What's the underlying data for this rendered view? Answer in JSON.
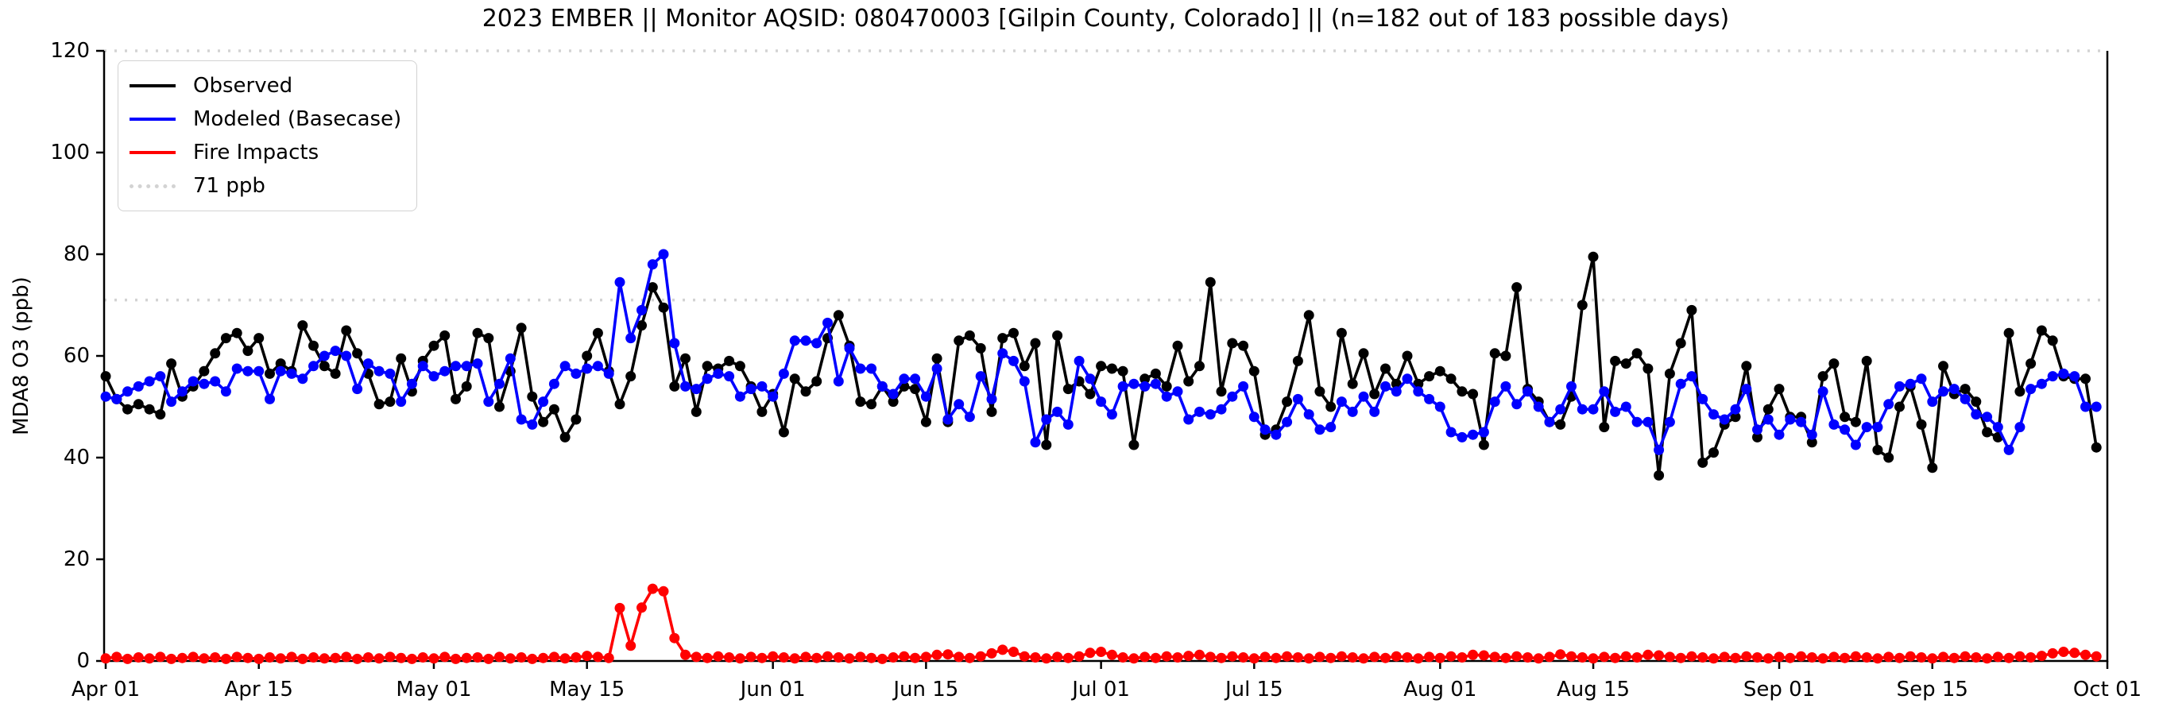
{
  "figure": {
    "title": "2023 EMBER || Monitor AQSID: 080470003 [Gilpin County, Colorado] || (n=182 out of 183 possible days)",
    "y_axis_label": "MDA8 O3 (ppb)",
    "background_color": "#ffffff"
  },
  "legend": {
    "items": [
      {
        "key": "observed",
        "label": "Observed",
        "color": "#000000",
        "style": "solid"
      },
      {
        "key": "modeled",
        "label": "Modeled (Basecase)",
        "color": "#0000ff",
        "style": "solid"
      },
      {
        "key": "fire",
        "label": "Fire Impacts",
        "color": "#ff0000",
        "style": "solid"
      },
      {
        "key": "threshold",
        "label": "71 ppb",
        "color": "#d3d3d3",
        "style": "dotted"
      }
    ],
    "position": "upper left"
  },
  "chart_data": {
    "type": "line",
    "title": "2023 EMBER || Monitor AQSID: 080470003 [Gilpin County, Colorado] || (n=182 out of 183 possible days)",
    "xlabel": "",
    "ylabel": "MDA8 O3 (ppb)",
    "ylim": [
      0,
      120
    ],
    "yticks": [
      0,
      20,
      40,
      60,
      80,
      100,
      120
    ],
    "x_axis": {
      "start_label": "Apr 01",
      "end_label": "Oct 01",
      "total_days": 183
    },
    "xticks": [
      {
        "label": "Apr 01",
        "day": 0
      },
      {
        "label": "Apr 15",
        "day": 14
      },
      {
        "label": "May 01",
        "day": 30
      },
      {
        "label": "May 15",
        "day": 44
      },
      {
        "label": "Jun 01",
        "day": 61
      },
      {
        "label": "Jun 15",
        "day": 75
      },
      {
        "label": "Jul 01",
        "day": 91
      },
      {
        "label": "Jul 15",
        "day": 105
      },
      {
        "label": "Aug 01",
        "day": 122
      },
      {
        "label": "Aug 15",
        "day": 136
      },
      {
        "label": "Sep 01",
        "day": 153
      },
      {
        "label": "Sep 15",
        "day": 167
      },
      {
        "label": "Oct 01",
        "day": 183
      }
    ],
    "grid": false,
    "threshold": {
      "value": 71,
      "label": "71 ppb",
      "color": "#d3d3d3",
      "style": "dotted"
    },
    "marker": "circle",
    "series": [
      {
        "key": "observed",
        "name": "Observed",
        "color": "#000000",
        "values": [
          56,
          51.5,
          49.5,
          50.5,
          49.5,
          48.5,
          58.5,
          52,
          54,
          57,
          60.5,
          63.5,
          64.5,
          61,
          63.5,
          56.5,
          58.5,
          57,
          66,
          62,
          58,
          56.5,
          65,
          60.5,
          56.5,
          50.5,
          51,
          59.5,
          53,
          59,
          62,
          64,
          51.5,
          54,
          64.5,
          63.5,
          50,
          57,
          65.5,
          52,
          47,
          49.5,
          44,
          47.5,
          60,
          64.5,
          57,
          50.5,
          56,
          66,
          73.5,
          69.5,
          54,
          59.5,
          49,
          58,
          57.5,
          59,
          58,
          54,
          49,
          52.5,
          45,
          55.5,
          53,
          55,
          63.5,
          68,
          62,
          51,
          50.5,
          54,
          51,
          54,
          53.5,
          47,
          59.5,
          47,
          63,
          64,
          61.5,
          49,
          63.5,
          64.5,
          58,
          62.5,
          42.5,
          64,
          53.5,
          55,
          52.5,
          58,
          57.5,
          57,
          42.5,
          55.5,
          56.5,
          54,
          62,
          55,
          58,
          74.5,
          53,
          62.5,
          62,
          57,
          44.5,
          45.5,
          51,
          59,
          68,
          53,
          50,
          64.5,
          54.5,
          60.5,
          52.5,
          57.5,
          54.5,
          60,
          54.5,
          56,
          57,
          55.5,
          53,
          52.5,
          42.5,
          60.5,
          60,
          73.5,
          53.5,
          51,
          47,
          46.5,
          52,
          70,
          79.5,
          46,
          59,
          58.5,
          60.5,
          57.5,
          36.5,
          56.5,
          62.5,
          69,
          39,
          41,
          46.5,
          48,
          58,
          44,
          49.5,
          53.5,
          48,
          48,
          43,
          56,
          58.5,
          48,
          47,
          59,
          41.5,
          40,
          50,
          54,
          46.5,
          38,
          58,
          52.5,
          53.5,
          51,
          45,
          44,
          64.5,
          53,
          58.5,
          65,
          63,
          56,
          55.5,
          55.5,
          42
        ]
      },
      {
        "key": "modeled",
        "name": "Modeled (Basecase)",
        "color": "#0000ff",
        "values": [
          52,
          51.5,
          53,
          54,
          55,
          56,
          51,
          53,
          55,
          54.5,
          55,
          53,
          57.5,
          57,
          57,
          51.5,
          57,
          56.5,
          55.5,
          58,
          60,
          61,
          60,
          53.5,
          58.5,
          57,
          56.5,
          51,
          54.5,
          58,
          56,
          57,
          58,
          58,
          58.5,
          51,
          54.5,
          59.5,
          47.5,
          46.5,
          51,
          54.5,
          58,
          56.5,
          57.5,
          58,
          56.5,
          74.5,
          63.5,
          69,
          78,
          80,
          62.5,
          54,
          53.5,
          55.5,
          56.5,
          56,
          52,
          53.5,
          54,
          52,
          56.5,
          63,
          63,
          62.5,
          66.5,
          55,
          61.5,
          57.5,
          57.5,
          54,
          52.5,
          55.5,
          55.5,
          52,
          57.5,
          47.5,
          50.5,
          48,
          56,
          51.5,
          60.5,
          59,
          55,
          43,
          47.5,
          49,
          46.5,
          59,
          55.5,
          51,
          48.5,
          54,
          54.5,
          54,
          54.5,
          52,
          53,
          47.5,
          49,
          48.5,
          49.5,
          52,
          54,
          48,
          45.5,
          44.5,
          47,
          51.5,
          48.5,
          45.5,
          46,
          51,
          49,
          52,
          49,
          54,
          53,
          55.5,
          53,
          51.5,
          50,
          45,
          44,
          44.5,
          45,
          51,
          54,
          50.5,
          53,
          50,
          47,
          49.5,
          54,
          49.5,
          49.5,
          53,
          49,
          50,
          47,
          47,
          41.5,
          47,
          54.5,
          56,
          51.5,
          48.5,
          47.5,
          49.5,
          53.5,
          45.5,
          47.5,
          44.5,
          47.5,
          47,
          44.5,
          53,
          46.5,
          45.5,
          42.5,
          46,
          46,
          50.5,
          54,
          54.5,
          55.5,
          51,
          53,
          53.5,
          51.5,
          48.5,
          48,
          46,
          41.5,
          46,
          53.5,
          54.5,
          56,
          56.5,
          56,
          50,
          50
        ]
      },
      {
        "key": "fire",
        "name": "Fire Impacts",
        "color": "#ff0000",
        "values": [
          0.5,
          0.8,
          0.4,
          0.7,
          0.5,
          0.8,
          0.4,
          0.6,
          0.8,
          0.5,
          0.7,
          0.4,
          0.8,
          0.6,
          0.4,
          0.7,
          0.5,
          0.8,
          0.4,
          0.7,
          0.5,
          0.6,
          0.8,
          0.4,
          0.7,
          0.5,
          0.8,
          0.6,
          0.4,
          0.7,
          0.5,
          0.8,
          0.4,
          0.6,
          0.7,
          0.4,
          0.8,
          0.5,
          0.7,
          0.4,
          0.6,
          0.8,
          0.5,
          0.7,
          1.0,
          0.8,
          0.6,
          10.4,
          3.0,
          10.5,
          14.2,
          13.7,
          4.5,
          1.2,
          0.8,
          0.6,
          0.9,
          0.7,
          0.5,
          0.8,
          0.6,
          0.9,
          0.7,
          0.5,
          0.8,
          0.6,
          0.9,
          0.7,
          0.5,
          0.8,
          0.6,
          0.4,
          0.7,
          0.9,
          0.6,
          0.8,
          1.2,
          1.3,
          0.8,
          0.6,
          0.9,
          1.5,
          2.2,
          1.8,
          0.9,
          0.7,
          0.5,
          0.8,
          0.6,
          0.9,
          1.6,
          1.8,
          1.2,
          0.7,
          0.5,
          0.8,
          0.6,
          0.9,
          0.7,
          1.0,
          1.2,
          0.8,
          0.6,
          0.9,
          0.7,
          0.5,
          0.8,
          0.6,
          0.9,
          0.7,
          0.5,
          0.8,
          0.6,
          0.9,
          0.7,
          0.5,
          0.8,
          0.6,
          0.9,
          0.7,
          0.5,
          0.8,
          0.6,
          0.9,
          0.7,
          1.2,
          1.1,
          0.8,
          0.6,
          0.9,
          0.7,
          0.5,
          0.8,
          1.3,
          0.9,
          0.7,
          0.5,
          0.8,
          0.6,
          0.9,
          0.7,
          1.2,
          1.1,
          0.8,
          0.6,
          0.9,
          0.7,
          0.5,
          0.8,
          0.6,
          0.9,
          0.7,
          0.5,
          0.8,
          0.6,
          0.9,
          0.7,
          0.5,
          0.8,
          0.6,
          0.9,
          0.7,
          0.5,
          0.8,
          0.6,
          0.9,
          0.7,
          0.5,
          0.8,
          0.6,
          0.9,
          0.7,
          0.5,
          0.8,
          0.6,
          0.9,
          0.7,
          1.0,
          1.5,
          1.8,
          1.6,
          1.2,
          0.9
        ]
      }
    ]
  }
}
